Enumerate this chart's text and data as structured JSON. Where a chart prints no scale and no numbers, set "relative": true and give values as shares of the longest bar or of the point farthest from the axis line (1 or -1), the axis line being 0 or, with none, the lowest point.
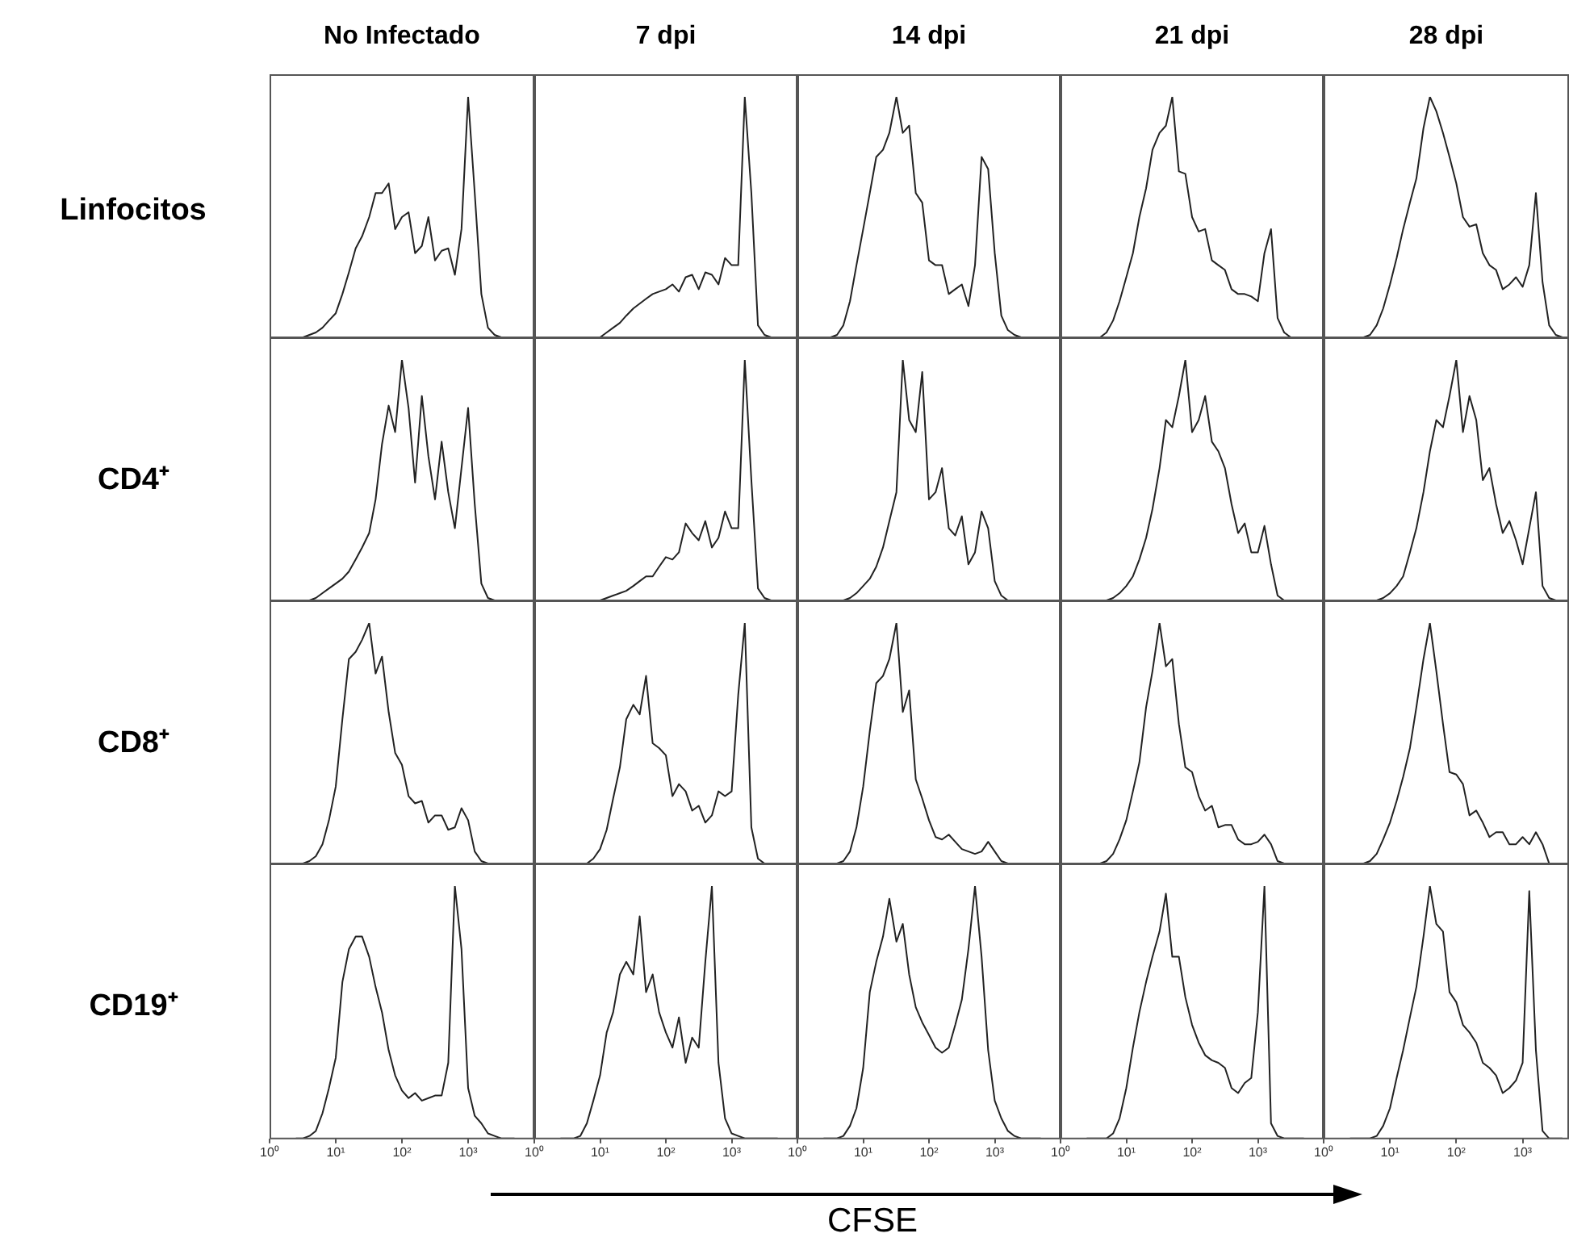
{
  "chart_data": [
    {
      "type": "line",
      "title": "No Infectado",
      "ylabel": "Linfocitos",
      "relative": true,
      "log": "x",
      "xlim": [
        1,
        10000
      ],
      "tick_labels": false,
      "color": "#222222",
      "x": [
        2.5,
        3.2,
        4,
        5,
        6.3,
        7.9,
        10,
        12.6,
        15.8,
        20,
        25,
        32,
        40,
        50,
        63,
        79,
        100,
        126,
        158,
        200,
        251,
        316,
        398,
        501,
        631,
        794,
        1000,
        1259,
        1585,
        1995,
        2512,
        3162,
        3981,
        5012
      ],
      "values": [
        0,
        0,
        0.01,
        0.02,
        0.04,
        0.07,
        0.1,
        0.18,
        0.27,
        0.37,
        0.42,
        0.5,
        0.6,
        0.6,
        0.64,
        0.45,
        0.5,
        0.52,
        0.35,
        0.38,
        0.5,
        0.32,
        0.36,
        0.37,
        0.26,
        0.45,
        1,
        0.6,
        0.18,
        0.04,
        0.01,
        0,
        0,
        0
      ]
    },
    {
      "type": "line",
      "title": "7 dpi",
      "relative": true,
      "log": "x",
      "xlim": [
        1,
        10000
      ],
      "tick_labels": false,
      "color": "#222222",
      "x": [
        2.5,
        3.2,
        4,
        5,
        6.3,
        7.9,
        10,
        12.6,
        15.8,
        20,
        25,
        32,
        40,
        50,
        63,
        79,
        100,
        126,
        158,
        200,
        251,
        316,
        398,
        501,
        631,
        794,
        1000,
        1259,
        1585,
        1995,
        2512,
        3162,
        3981,
        5012
      ],
      "values": [
        0,
        0,
        0,
        0,
        0,
        0,
        0,
        0.02,
        0.04,
        0.06,
        0.09,
        0.12,
        0.14,
        0.16,
        0.18,
        0.19,
        0.2,
        0.22,
        0.19,
        0.25,
        0.26,
        0.2,
        0.27,
        0.26,
        0.22,
        0.33,
        0.3,
        0.3,
        1,
        0.6,
        0.05,
        0.01,
        0,
        0
      ]
    },
    {
      "type": "line",
      "title": "14 dpi",
      "relative": true,
      "log": "x",
      "xlim": [
        1,
        10000
      ],
      "tick_labels": false,
      "color": "#222222",
      "x": [
        2.5,
        3.2,
        4,
        5,
        6.3,
        7.9,
        10,
        12.6,
        15.8,
        20,
        25,
        32,
        40,
        50,
        63,
        79,
        100,
        126,
        158,
        200,
        251,
        316,
        398,
        501,
        631,
        794,
        1000,
        1259,
        1585,
        1995,
        2512,
        3162,
        3981,
        5012
      ],
      "values": [
        0,
        0,
        0.01,
        0.05,
        0.15,
        0.3,
        0.45,
        0.6,
        0.75,
        0.78,
        0.85,
        1,
        0.85,
        0.88,
        0.6,
        0.56,
        0.32,
        0.3,
        0.3,
        0.18,
        0.2,
        0.22,
        0.13,
        0.3,
        0.75,
        0.7,
        0.35,
        0.09,
        0.03,
        0.01,
        0,
        0,
        0,
        0
      ]
    },
    {
      "type": "line",
      "title": "21 dpi",
      "relative": true,
      "log": "x",
      "xlim": [
        1,
        10000
      ],
      "tick_labels": false,
      "color": "#222222",
      "x": [
        2.5,
        3.2,
        4,
        5,
        6.3,
        7.9,
        10,
        12.6,
        15.8,
        20,
        25,
        32,
        40,
        50,
        63,
        79,
        100,
        126,
        158,
        200,
        251,
        316,
        398,
        501,
        631,
        794,
        1000,
        1259,
        1585,
        1995,
        2512,
        3162,
        3981,
        5012
      ],
      "values": [
        0,
        0,
        0,
        0.02,
        0.07,
        0.15,
        0.25,
        0.35,
        0.5,
        0.62,
        0.78,
        0.85,
        0.88,
        1,
        0.69,
        0.68,
        0.5,
        0.44,
        0.45,
        0.32,
        0.3,
        0.28,
        0.2,
        0.18,
        0.18,
        0.17,
        0.15,
        0.35,
        0.45,
        0.08,
        0.02,
        0,
        0,
        0
      ]
    },
    {
      "type": "line",
      "title": "28 dpi",
      "relative": true,
      "log": "x",
      "xlim": [
        1,
        5000
      ],
      "tick_labels": false,
      "color": "#222222",
      "x": [
        2.5,
        3.2,
        4,
        5,
        6.3,
        7.9,
        10,
        12.6,
        15.8,
        20,
        25,
        32,
        40,
        50,
        63,
        79,
        100,
        126,
        158,
        200,
        251,
        316,
        398,
        501,
        631,
        794,
        1000,
        1259,
        1585,
        1995,
        2512,
        3162,
        3981
      ],
      "values": [
        0,
        0,
        0,
        0.01,
        0.05,
        0.12,
        0.22,
        0.33,
        0.45,
        0.56,
        0.66,
        0.87,
        1,
        0.94,
        0.85,
        0.75,
        0.64,
        0.5,
        0.46,
        0.47,
        0.35,
        0.3,
        0.28,
        0.2,
        0.22,
        0.25,
        0.21,
        0.3,
        0.6,
        0.23,
        0.05,
        0.01,
        0
      ]
    },
    {
      "type": "line",
      "ylabel": "CD4⁺",
      "relative": true,
      "log": "x",
      "xlim": [
        1,
        10000
      ],
      "tick_labels": false,
      "color": "#222222",
      "x": [
        2.5,
        3.2,
        4,
        5,
        6.3,
        7.9,
        10,
        12.6,
        15.8,
        20,
        25,
        32,
        40,
        50,
        63,
        79,
        100,
        126,
        158,
        200,
        251,
        316,
        398,
        501,
        631,
        794,
        1000,
        1259,
        1585,
        1995,
        2512,
        3162,
        3981,
        5012
      ],
      "values": [
        0,
        0,
        0,
        0.01,
        0.03,
        0.05,
        0.07,
        0.09,
        0.12,
        0.17,
        0.22,
        0.28,
        0.42,
        0.65,
        0.81,
        0.7,
        1,
        0.8,
        0.49,
        0.85,
        0.6,
        0.42,
        0.66,
        0.45,
        0.3,
        0.55,
        0.8,
        0.4,
        0.07,
        0.01,
        0,
        0,
        0,
        0
      ]
    },
    {
      "type": "line",
      "relative": true,
      "log": "x",
      "xlim": [
        1,
        10000
      ],
      "tick_labels": false,
      "color": "#222222",
      "x": [
        2.5,
        3.2,
        4,
        5,
        6.3,
        7.9,
        10,
        12.6,
        15.8,
        20,
        25,
        32,
        40,
        50,
        63,
        79,
        100,
        126,
        158,
        200,
        251,
        316,
        398,
        501,
        631,
        794,
        1000,
        1259,
        1585,
        1995,
        2512,
        3162,
        3981,
        5012
      ],
      "values": [
        0,
        0,
        0,
        0,
        0,
        0,
        0,
        0.01,
        0.02,
        0.03,
        0.04,
        0.06,
        0.08,
        0.1,
        0.1,
        0.14,
        0.18,
        0.17,
        0.2,
        0.32,
        0.28,
        0.25,
        0.33,
        0.22,
        0.26,
        0.37,
        0.3,
        0.3,
        1,
        0.5,
        0.05,
        0.01,
        0,
        0
      ]
    },
    {
      "type": "line",
      "relative": true,
      "log": "x",
      "xlim": [
        1,
        10000
      ],
      "tick_labels": false,
      "color": "#222222",
      "x": [
        2.5,
        3.2,
        4,
        5,
        6.3,
        7.9,
        10,
        12.6,
        15.8,
        20,
        25,
        32,
        40,
        50,
        63,
        79,
        100,
        126,
        158,
        200,
        251,
        316,
        398,
        501,
        631,
        794,
        1000,
        1259,
        1585,
        1995,
        2512,
        3162,
        3981,
        5012
      ],
      "values": [
        0,
        0,
        0,
        0,
        0.01,
        0.03,
        0.06,
        0.09,
        0.14,
        0.22,
        0.33,
        0.45,
        1,
        0.75,
        0.7,
        0.95,
        0.42,
        0.45,
        0.55,
        0.3,
        0.27,
        0.35,
        0.15,
        0.2,
        0.37,
        0.3,
        0.08,
        0.02,
        0,
        0,
        0,
        0,
        0,
        0
      ]
    },
    {
      "type": "line",
      "relative": true,
      "log": "x",
      "xlim": [
        1,
        10000
      ],
      "tick_labels": false,
      "color": "#222222",
      "x": [
        2.5,
        3.2,
        4,
        5,
        6.3,
        7.9,
        10,
        12.6,
        15.8,
        20,
        25,
        32,
        40,
        50,
        63,
        79,
        100,
        126,
        158,
        200,
        251,
        316,
        398,
        501,
        631,
        794,
        1000,
        1259,
        1585,
        1995,
        2512,
        3162,
        3981,
        5012
      ],
      "values": [
        0,
        0,
        0,
        0,
        0.01,
        0.03,
        0.06,
        0.1,
        0.17,
        0.26,
        0.38,
        0.55,
        0.75,
        0.72,
        0.85,
        1,
        0.7,
        0.75,
        0.85,
        0.66,
        0.62,
        0.55,
        0.4,
        0.28,
        0.32,
        0.2,
        0.2,
        0.31,
        0.15,
        0.02,
        0,
        0,
        0,
        0
      ]
    },
    {
      "type": "line",
      "relative": true,
      "log": "x",
      "xlim": [
        1,
        5000
      ],
      "tick_labels": false,
      "color": "#222222",
      "x": [
        2.5,
        3.2,
        4,
        5,
        6.3,
        7.9,
        10,
        12.6,
        15.8,
        20,
        25,
        32,
        40,
        50,
        63,
        79,
        100,
        126,
        158,
        200,
        251,
        316,
        398,
        501,
        631,
        794,
        1000,
        1259,
        1585,
        1995,
        2512,
        3162,
        3981
      ],
      "values": [
        0,
        0,
        0,
        0,
        0,
        0.01,
        0.03,
        0.06,
        0.1,
        0.2,
        0.3,
        0.45,
        0.62,
        0.75,
        0.72,
        0.85,
        1,
        0.7,
        0.85,
        0.75,
        0.5,
        0.55,
        0.4,
        0.28,
        0.33,
        0.25,
        0.15,
        0.3,
        0.45,
        0.06,
        0.01,
        0,
        0
      ]
    },
    {
      "type": "line",
      "ylabel": "CD8⁺",
      "relative": true,
      "log": "x",
      "xlim": [
        1,
        10000
      ],
      "tick_labels": false,
      "color": "#222222",
      "x": [
        2.5,
        3.2,
        4,
        5,
        6.3,
        7.9,
        10,
        12.6,
        15.8,
        20,
        25,
        32,
        40,
        50,
        63,
        79,
        100,
        126,
        158,
        200,
        251,
        316,
        398,
        501,
        631,
        794,
        1000,
        1259,
        1585,
        1995,
        2512,
        3162,
        3981,
        5012
      ],
      "values": [
        0,
        0,
        0.01,
        0.03,
        0.08,
        0.18,
        0.32,
        0.6,
        0.85,
        0.88,
        0.93,
        1,
        0.79,
        0.86,
        0.63,
        0.46,
        0.41,
        0.28,
        0.25,
        0.26,
        0.17,
        0.2,
        0.2,
        0.14,
        0.15,
        0.23,
        0.18,
        0.05,
        0.01,
        0,
        0,
        0,
        0,
        0
      ]
    },
    {
      "type": "line",
      "relative": true,
      "log": "x",
      "xlim": [
        1,
        10000
      ],
      "tick_labels": false,
      "color": "#222222",
      "x": [
        2.5,
        3.2,
        4,
        5,
        6.3,
        7.9,
        10,
        12.6,
        15.8,
        20,
        25,
        32,
        40,
        50,
        63,
        79,
        100,
        126,
        158,
        200,
        251,
        316,
        398,
        501,
        631,
        794,
        1000,
        1259,
        1585,
        1995,
        2512,
        3162,
        3981,
        5012
      ],
      "values": [
        0,
        0,
        0,
        0,
        0,
        0.02,
        0.06,
        0.14,
        0.27,
        0.4,
        0.6,
        0.66,
        0.62,
        0.78,
        0.5,
        0.48,
        0.45,
        0.28,
        0.33,
        0.3,
        0.22,
        0.24,
        0.17,
        0.2,
        0.3,
        0.28,
        0.3,
        0.7,
        1,
        0.15,
        0.02,
        0,
        0,
        0
      ]
    },
    {
      "type": "line",
      "relative": true,
      "log": "x",
      "xlim": [
        1,
        10000
      ],
      "tick_labels": false,
      "color": "#222222",
      "x": [
        2.5,
        3.2,
        4,
        5,
        6.3,
        7.9,
        10,
        12.6,
        15.8,
        20,
        25,
        32,
        40,
        50,
        63,
        79,
        100,
        126,
        158,
        200,
        251,
        316,
        398,
        501,
        631,
        794,
        1000,
        1259,
        1585,
        1995,
        2512,
        3162,
        3981,
        5012
      ],
      "values": [
        0,
        0,
        0,
        0.01,
        0.05,
        0.15,
        0.32,
        0.55,
        0.75,
        0.78,
        0.85,
        1,
        0.63,
        0.72,
        0.35,
        0.27,
        0.18,
        0.11,
        0.1,
        0.12,
        0.09,
        0.06,
        0.05,
        0.04,
        0.05,
        0.09,
        0.05,
        0.01,
        0,
        0,
        0,
        0,
        0,
        0
      ]
    },
    {
      "type": "line",
      "relative": true,
      "log": "x",
      "xlim": [
        1,
        10000
      ],
      "tick_labels": false,
      "color": "#222222",
      "x": [
        2.5,
        3.2,
        4,
        5,
        6.3,
        7.9,
        10,
        12.6,
        15.8,
        20,
        25,
        32,
        40,
        50,
        63,
        79,
        100,
        126,
        158,
        200,
        251,
        316,
        398,
        501,
        631,
        794,
        1000,
        1259,
        1585,
        1995,
        2512,
        3162,
        3981,
        5012
      ],
      "values": [
        0,
        0,
        0,
        0.01,
        0.04,
        0.1,
        0.18,
        0.3,
        0.42,
        0.65,
        0.8,
        1,
        0.82,
        0.85,
        0.58,
        0.4,
        0.38,
        0.28,
        0.22,
        0.24,
        0.15,
        0.16,
        0.16,
        0.1,
        0.08,
        0.08,
        0.09,
        0.12,
        0.08,
        0.01,
        0,
        0,
        0,
        0
      ]
    },
    {
      "type": "line",
      "relative": true,
      "log": "x",
      "xlim": [
        1,
        5000
      ],
      "tick_labels": false,
      "color": "#222222",
      "x": [
        2.5,
        3.2,
        4,
        5,
        6.3,
        7.9,
        10,
        12.6,
        15.8,
        20,
        25,
        32,
        40,
        50,
        63,
        79,
        100,
        126,
        158,
        200,
        251,
        316,
        398,
        501,
        631,
        794,
        1000,
        1259,
        1585,
        1995,
        2512,
        3162,
        3981
      ],
      "values": [
        0,
        0,
        0,
        0.01,
        0.04,
        0.1,
        0.17,
        0.26,
        0.36,
        0.48,
        0.65,
        0.85,
        1,
        0.8,
        0.58,
        0.38,
        0.37,
        0.33,
        0.2,
        0.22,
        0.17,
        0.11,
        0.13,
        0.13,
        0.08,
        0.08,
        0.11,
        0.08,
        0.13,
        0.08,
        0,
        0,
        0
      ]
    },
    {
      "type": "line",
      "ylabel": "CD19⁺",
      "relative": true,
      "log": "x",
      "xlim": [
        1,
        10000
      ],
      "tick_labels": "x",
      "xticks": [
        {
          "value": 1,
          "label": "10⁰"
        },
        {
          "value": 10,
          "label": "10¹"
        },
        {
          "value": 100,
          "label": "10²"
        },
        {
          "value": 1000,
          "label": "10³"
        },
        {
          "value": 10000,
          "label": null
        }
      ],
      "color": "#222222",
      "x": [
        2.5,
        3.2,
        4,
        5,
        6.3,
        7.9,
        10,
        12.6,
        15.8,
        20,
        25,
        32,
        40,
        50,
        63,
        79,
        100,
        126,
        158,
        200,
        251,
        316,
        398,
        501,
        631,
        794,
        1000,
        1259,
        1585,
        1995,
        2512,
        3162,
        3981,
        5012
      ],
      "values": [
        0,
        0,
        0.01,
        0.03,
        0.1,
        0.2,
        0.32,
        0.62,
        0.75,
        0.8,
        0.8,
        0.72,
        0.6,
        0.5,
        0.35,
        0.25,
        0.19,
        0.16,
        0.18,
        0.15,
        0.16,
        0.17,
        0.17,
        0.3,
        1,
        0.75,
        0.2,
        0.09,
        0.06,
        0.02,
        0.01,
        0,
        0,
        0
      ]
    },
    {
      "type": "line",
      "relative": true,
      "log": "x",
      "xlim": [
        1,
        10000
      ],
      "tick_labels": "x",
      "xticks": [
        {
          "value": 1,
          "label": "10⁰"
        },
        {
          "value": 10,
          "label": "10¹"
        },
        {
          "value": 100,
          "label": "10²"
        },
        {
          "value": 1000,
          "label": "10³"
        },
        {
          "value": 10000,
          "label": null
        }
      ],
      "color": "#222222",
      "x": [
        2.5,
        3.2,
        4,
        5,
        6.3,
        7.9,
        10,
        12.6,
        15.8,
        20,
        25,
        32,
        40,
        50,
        63,
        79,
        100,
        126,
        158,
        200,
        251,
        316,
        398,
        501,
        631,
        794,
        1000,
        1259,
        1585,
        1995,
        2512,
        3162,
        3981,
        5012
      ],
      "values": [
        0,
        0,
        0,
        0.01,
        0.06,
        0.15,
        0.25,
        0.42,
        0.5,
        0.65,
        0.7,
        0.65,
        0.88,
        0.58,
        0.65,
        0.5,
        0.42,
        0.36,
        0.48,
        0.3,
        0.4,
        0.36,
        0.7,
        1,
        0.3,
        0.08,
        0.02,
        0.01,
        0,
        0,
        0,
        0,
        0,
        0
      ]
    },
    {
      "type": "line",
      "xlabel": "CFSE",
      "relative": true,
      "log": "x",
      "xlim": [
        1,
        10000
      ],
      "tick_labels": "x",
      "xticks": [
        {
          "value": 1,
          "label": "10⁰"
        },
        {
          "value": 10,
          "label": "10¹"
        },
        {
          "value": 100,
          "label": "10²"
        },
        {
          "value": 1000,
          "label": "10³"
        },
        {
          "value": 10000,
          "label": null
        }
      ],
      "color": "#222222",
      "x": [
        2.5,
        3.2,
        4,
        5,
        6.3,
        7.9,
        10,
        12.6,
        15.8,
        20,
        25,
        32,
        40,
        50,
        63,
        79,
        100,
        126,
        158,
        200,
        251,
        316,
        398,
        501,
        631,
        794,
        1000,
        1259,
        1585,
        1995,
        2512,
        3162,
        3981,
        5012
      ],
      "values": [
        0,
        0,
        0,
        0.01,
        0.05,
        0.12,
        0.28,
        0.58,
        0.7,
        0.8,
        0.95,
        0.78,
        0.85,
        0.65,
        0.52,
        0.46,
        0.41,
        0.36,
        0.34,
        0.36,
        0.45,
        0.55,
        0.75,
        1,
        0.72,
        0.35,
        0.15,
        0.08,
        0.03,
        0.01,
        0,
        0,
        0,
        0
      ]
    },
    {
      "type": "line",
      "relative": true,
      "log": "x",
      "xlim": [
        1,
        10000
      ],
      "tick_labels": "x",
      "xticks": [
        {
          "value": 1,
          "label": "10⁰"
        },
        {
          "value": 10,
          "label": "10¹"
        },
        {
          "value": 100,
          "label": "10²"
        },
        {
          "value": 1000,
          "label": "10³"
        },
        {
          "value": 10000,
          "label": null
        }
      ],
      "color": "#222222",
      "x": [
        2.5,
        3.2,
        4,
        5,
        6.3,
        7.9,
        10,
        12.6,
        15.8,
        20,
        25,
        32,
        40,
        50,
        63,
        79,
        100,
        126,
        158,
        200,
        251,
        316,
        398,
        501,
        631,
        794,
        1000,
        1259,
        1585,
        1995,
        2512,
        3162,
        3981,
        5012
      ],
      "values": [
        0,
        0,
        0,
        0,
        0.02,
        0.08,
        0.2,
        0.36,
        0.5,
        0.62,
        0.72,
        0.82,
        0.97,
        0.72,
        0.72,
        0.56,
        0.45,
        0.38,
        0.33,
        0.31,
        0.3,
        0.28,
        0.2,
        0.18,
        0.22,
        0.24,
        0.5,
        1,
        0.06,
        0.01,
        0,
        0,
        0,
        0
      ]
    },
    {
      "type": "line",
      "relative": true,
      "log": "x",
      "xlim": [
        1,
        5000
      ],
      "tick_labels": "x",
      "xticks": [
        {
          "value": 1,
          "label": "10⁰"
        },
        {
          "value": 10,
          "label": "10¹"
        },
        {
          "value": 100,
          "label": "10²"
        },
        {
          "value": 1000,
          "label": "10³"
        }
      ],
      "color": "#222222",
      "x": [
        2.5,
        3.2,
        4,
        5,
        6.3,
        7.9,
        10,
        12.6,
        15.8,
        20,
        25,
        32,
        40,
        50,
        63,
        79,
        100,
        126,
        158,
        200,
        251,
        316,
        398,
        501,
        631,
        794,
        1000,
        1259,
        1585,
        1995,
        2512,
        3162,
        3981
      ],
      "values": [
        0,
        0,
        0,
        0,
        0.01,
        0.05,
        0.12,
        0.24,
        0.35,
        0.48,
        0.6,
        0.8,
        1,
        0.85,
        0.82,
        0.58,
        0.54,
        0.45,
        0.42,
        0.38,
        0.3,
        0.28,
        0.25,
        0.18,
        0.2,
        0.23,
        0.3,
        0.98,
        0.35,
        0.03,
        0,
        0,
        0
      ]
    }
  ]
}
